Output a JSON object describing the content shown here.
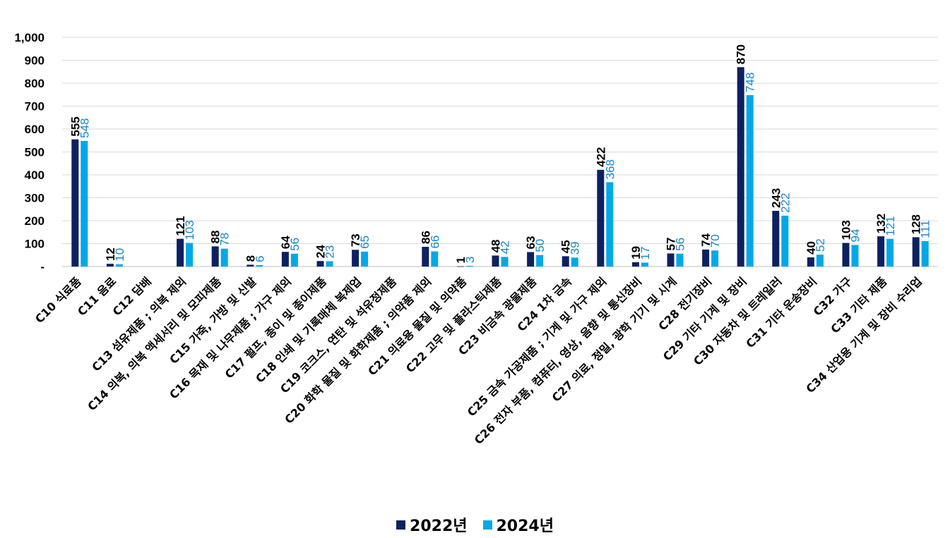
{
  "chart_data": {
    "type": "bar",
    "title": "",
    "xlabel": "",
    "ylabel": "",
    "ylim": [
      0,
      1000
    ],
    "yticks": [
      0,
      100,
      200,
      300,
      400,
      500,
      600,
      700,
      800,
      900,
      1000
    ],
    "ytick_labels": [
      "-",
      "100",
      "200",
      "300",
      "400",
      "500",
      "600",
      "700",
      "800",
      "900",
      "1,000"
    ],
    "grid": true,
    "legend_position": "bottom-center",
    "categories": [
      "C10 식료품",
      "C11 음료",
      "C12 담배",
      "C13 섬유제품 ; 의복 제외",
      "C14 의복, 의복 액세서리 및 모피제품",
      "C15 가죽, 가방 및 신발",
      "C16 목재 및 나무제품 ; 가구 제외",
      "C17 펄프, 종이 및 종이제품",
      "C18 인쇄 및 기록매체 복제업",
      "C19 코크스, 연탄 및 석유정제품",
      "C20 화학 물질 및 화학제품 ; 의약품 제외",
      "C21 의료용 물질 및 의약품",
      "C22 고무 및 플라스틱제품",
      "C23 비금속 광물제품",
      "C24 1차 금속",
      "C25 금속 가공제품 ; 기계 및 가구 제외",
      "C26 전자 부품, 컴퓨터, 영상, 음향 및 통신장비",
      "C27 의료, 정밀, 광학 기기 및 시계",
      "C28 전기장비",
      "C29 기타 기계 및 장비",
      "C30 자동차 및 트레일러",
      "C31 기타 운송장비",
      "C32 가구",
      "C33 기타 제품",
      "C34 산업용 기계 및 장비 수리업"
    ],
    "series": [
      {
        "name": "2022년",
        "color": "#0d2160",
        "values": [
          555,
          12,
          null,
          121,
          88,
          8,
          64,
          24,
          73,
          null,
          86,
          1,
          48,
          63,
          45,
          422,
          19,
          57,
          74,
          870,
          243,
          40,
          103,
          132,
          128
        ]
      },
      {
        "name": "2024년",
        "color": "#00a8e6",
        "values": [
          548,
          10,
          null,
          103,
          78,
          6,
          56,
          23,
          65,
          null,
          66,
          3,
          42,
          50,
          39,
          368,
          17,
          56,
          70,
          748,
          222,
          52,
          94,
          121,
          111
        ]
      }
    ]
  }
}
